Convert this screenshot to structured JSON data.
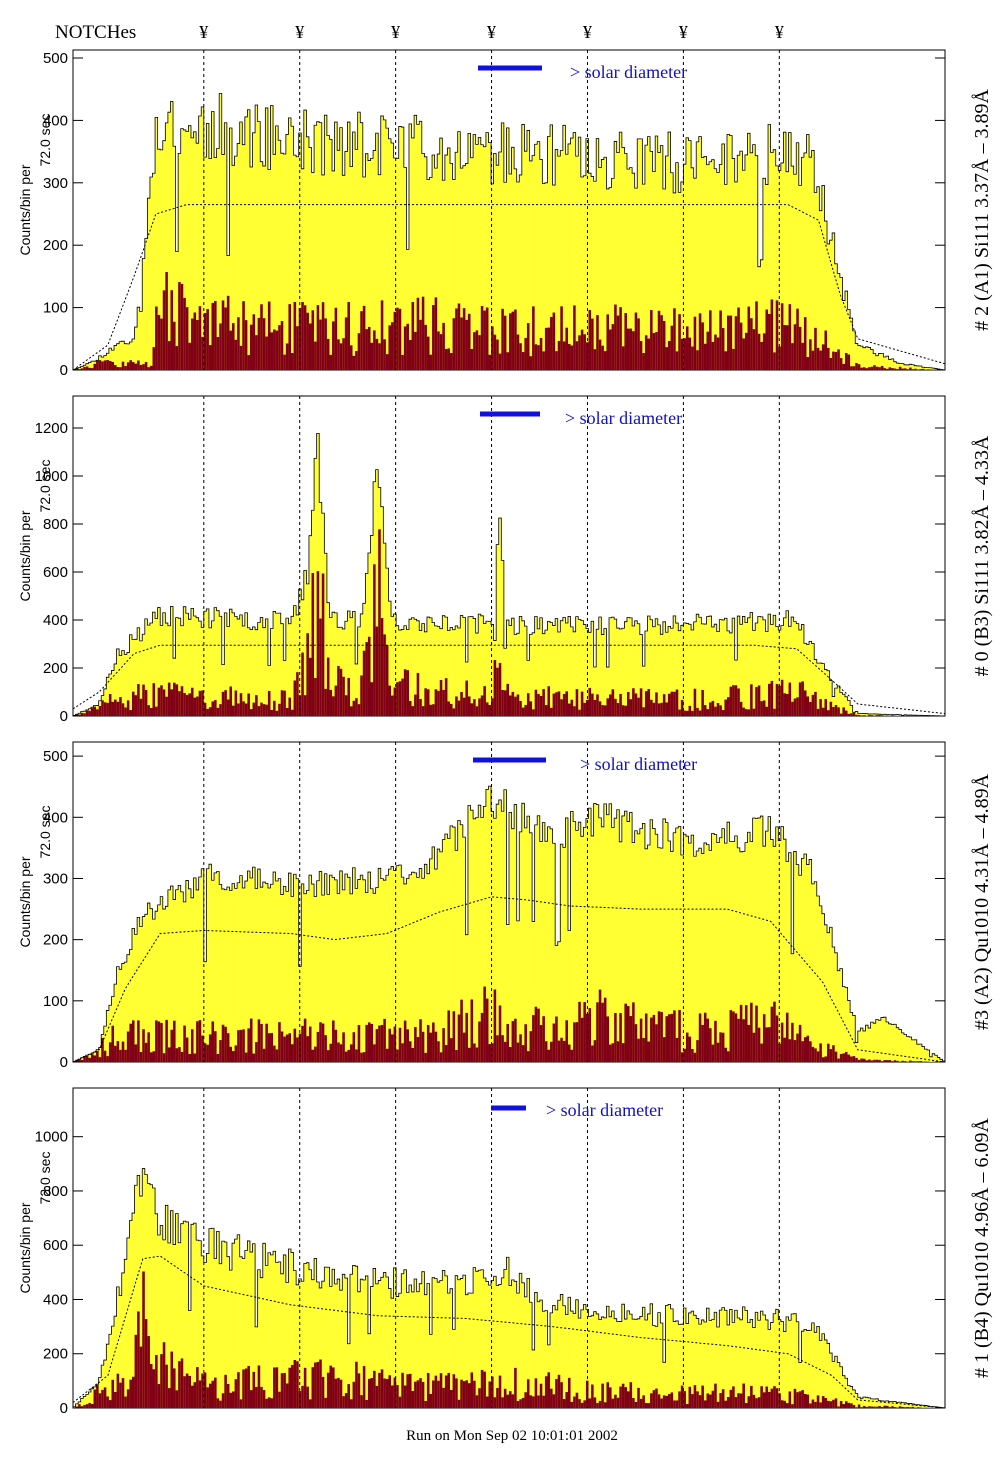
{
  "header": {
    "notches_label": "NOTCHes",
    "notch_marker": "¥",
    "notch_positions_data": [
      0.15,
      0.26,
      0.37,
      0.48,
      0.59,
      0.7,
      0.81
    ]
  },
  "footer": {
    "run_text": "Run on Mon Sep 02 10:01:01 2002"
  },
  "colors": {
    "total_fill": "#ffff33",
    "component_fill": "#800015",
    "solar_bar": "#1010e0",
    "solar_text": "#1010c8"
  },
  "chart_data": [
    {
      "type": "area",
      "panel_label": "# 2 (A1) Si111  3.37Å – 3.89Å",
      "ylabel_main": "Counts/bin per",
      "ylabel_sub": "72.0 sec",
      "ylim": [
        0,
        500
      ],
      "yticks": [
        0,
        100,
        200,
        300,
        400,
        500
      ],
      "annotation": "> solar diameter",
      "envelope": [
        [
          0,
          0
        ],
        [
          0.025,
          15
        ],
        [
          0.05,
          40
        ],
        [
          0.07,
          50
        ],
        [
          0.09,
          300
        ],
        [
          0.1,
          400
        ],
        [
          0.2,
          380
        ],
        [
          0.3,
          360
        ],
        [
          0.4,
          360
        ],
        [
          0.5,
          345
        ],
        [
          0.6,
          340
        ],
        [
          0.7,
          330
        ],
        [
          0.8,
          345
        ],
        [
          0.85,
          340
        ],
        [
          0.88,
          150
        ],
        [
          0.9,
          40
        ],
        [
          0.95,
          10
        ],
        [
          1,
          0
        ]
      ],
      "component": [
        [
          0,
          0
        ],
        [
          0.025,
          15
        ],
        [
          0.05,
          20
        ],
        [
          0.09,
          20
        ],
        [
          0.1,
          180
        ],
        [
          0.13,
          140
        ],
        [
          0.2,
          110
        ],
        [
          0.3,
          110
        ],
        [
          0.4,
          120
        ],
        [
          0.5,
          100
        ],
        [
          0.6,
          110
        ],
        [
          0.7,
          100
        ],
        [
          0.8,
          120
        ],
        [
          0.85,
          90
        ],
        [
          0.88,
          40
        ],
        [
          0.9,
          10
        ],
        [
          1,
          0
        ]
      ],
      "reference_curve": [
        [
          0,
          0
        ],
        [
          0.04,
          40
        ],
        [
          0.07,
          150
        ],
        [
          0.095,
          250
        ],
        [
          0.13,
          265
        ],
        [
          0.5,
          265
        ],
        [
          0.82,
          265
        ],
        [
          0.855,
          240
        ],
        [
          0.88,
          120
        ],
        [
          0.9,
          50
        ],
        [
          1,
          10
        ]
      ],
      "noise": [
        0.3,
        0.4
      ],
      "seed": 11
    },
    {
      "type": "area",
      "panel_label": "# 0 (B3) Si111  3.82Å – 4.33Å",
      "ylabel_main": "Counts/bin per",
      "ylabel_sub": "72.0 sec",
      "ylim": [
        0,
        1300
      ],
      "yticks": [
        0,
        200,
        400,
        600,
        800,
        1000,
        1200
      ],
      "annotation": "> solar diameter",
      "envelope": [
        [
          0,
          0
        ],
        [
          0.03,
          50
        ],
        [
          0.05,
          250
        ],
        [
          0.1,
          420
        ],
        [
          0.2,
          400
        ],
        [
          0.25,
          390
        ],
        [
          0.27,
          600
        ],
        [
          0.28,
          1150
        ],
        [
          0.295,
          400
        ],
        [
          0.33,
          400
        ],
        [
          0.35,
          1050
        ],
        [
          0.365,
          400
        ],
        [
          0.48,
          380
        ],
        [
          0.49,
          800
        ],
        [
          0.5,
          380
        ],
        [
          0.7,
          380
        ],
        [
          0.83,
          400
        ],
        [
          0.86,
          200
        ],
        [
          0.9,
          10
        ],
        [
          1,
          0
        ]
      ],
      "component": [
        [
          0,
          0
        ],
        [
          0.05,
          100
        ],
        [
          0.1,
          150
        ],
        [
          0.2,
          110
        ],
        [
          0.25,
          100
        ],
        [
          0.27,
          450
        ],
        [
          0.28,
          820
        ],
        [
          0.295,
          200
        ],
        [
          0.33,
          200
        ],
        [
          0.35,
          800
        ],
        [
          0.365,
          200
        ],
        [
          0.48,
          120
        ],
        [
          0.49,
          400
        ],
        [
          0.5,
          120
        ],
        [
          0.7,
          100
        ],
        [
          0.83,
          160
        ],
        [
          0.86,
          80
        ],
        [
          0.9,
          5
        ],
        [
          1,
          0
        ]
      ],
      "reference_curve": [
        [
          0,
          30
        ],
        [
          0.03,
          100
        ],
        [
          0.07,
          260
        ],
        [
          0.1,
          295
        ],
        [
          0.5,
          295
        ],
        [
          0.78,
          295
        ],
        [
          0.83,
          280
        ],
        [
          0.87,
          150
        ],
        [
          0.9,
          50
        ],
        [
          1,
          10
        ]
      ],
      "noise": [
        0.22,
        0.45
      ],
      "seed": 23
    },
    {
      "type": "area",
      "panel_label": "#3 (A2) Qu1010  4.31Å – 4.89Å",
      "ylabel_main": "Counts/bin per",
      "ylabel_sub": "72.0 sec",
      "ylim": [
        0,
        510
      ],
      "yticks": [
        0,
        100,
        200,
        300,
        400,
        500
      ],
      "annotation": "> solar diameter",
      "envelope": [
        [
          0,
          0
        ],
        [
          0.03,
          20
        ],
        [
          0.05,
          140
        ],
        [
          0.08,
          240
        ],
        [
          0.15,
          300
        ],
        [
          0.3,
          290
        ],
        [
          0.4,
          310
        ],
        [
          0.48,
          430
        ],
        [
          0.55,
          370
        ],
        [
          0.6,
          400
        ],
        [
          0.7,
          360
        ],
        [
          0.8,
          380
        ],
        [
          0.85,
          300
        ],
        [
          0.9,
          50
        ],
        [
          0.93,
          70
        ],
        [
          1,
          0
        ]
      ],
      "component": [
        [
          0,
          0
        ],
        [
          0.05,
          60
        ],
        [
          0.08,
          60
        ],
        [
          0.2,
          60
        ],
        [
          0.3,
          60
        ],
        [
          0.4,
          60
        ],
        [
          0.48,
          120
        ],
        [
          0.55,
          60
        ],
        [
          0.6,
          100
        ],
        [
          0.7,
          70
        ],
        [
          0.8,
          90
        ],
        [
          0.85,
          40
        ],
        [
          0.9,
          5
        ],
        [
          1,
          0
        ]
      ],
      "reference_curve": [
        [
          0,
          0
        ],
        [
          0.03,
          20
        ],
        [
          0.06,
          120
        ],
        [
          0.1,
          210
        ],
        [
          0.15,
          215
        ],
        [
          0.25,
          210
        ],
        [
          0.3,
          200
        ],
        [
          0.36,
          210
        ],
        [
          0.42,
          245
        ],
        [
          0.48,
          270
        ],
        [
          0.52,
          265
        ],
        [
          0.57,
          255
        ],
        [
          0.65,
          250
        ],
        [
          0.75,
          250
        ],
        [
          0.8,
          230
        ],
        [
          0.86,
          130
        ],
        [
          0.9,
          20
        ],
        [
          1,
          0
        ]
      ],
      "noise": [
        0.16,
        0.5
      ],
      "seed": 37
    },
    {
      "type": "area",
      "panel_label": "# 1 (B4) Qu1010 4.96Å – 6.09Å",
      "ylabel_main": "Counts/bin per",
      "ylabel_sub": "72.0 sec",
      "ylim": [
        0,
        1150
      ],
      "yticks": [
        0,
        200,
        400,
        600,
        800,
        1000
      ],
      "annotation": "> solar diameter",
      "envelope": [
        [
          0,
          0
        ],
        [
          0.03,
          100
        ],
        [
          0.05,
          400
        ],
        [
          0.08,
          850
        ],
        [
          0.1,
          700
        ],
        [
          0.15,
          600
        ],
        [
          0.2,
          560
        ],
        [
          0.3,
          480
        ],
        [
          0.4,
          450
        ],
        [
          0.5,
          500
        ],
        [
          0.55,
          380
        ],
        [
          0.6,
          350
        ],
        [
          0.7,
          340
        ],
        [
          0.8,
          330
        ],
        [
          0.85,
          300
        ],
        [
          0.9,
          40
        ],
        [
          0.95,
          20
        ],
        [
          1,
          0
        ]
      ],
      "component": [
        [
          0,
          0
        ],
        [
          0.03,
          80
        ],
        [
          0.06,
          120
        ],
        [
          0.08,
          500
        ],
        [
          0.1,
          200
        ],
        [
          0.15,
          120
        ],
        [
          0.2,
          120
        ],
        [
          0.3,
          150
        ],
        [
          0.4,
          100
        ],
        [
          0.5,
          120
        ],
        [
          0.6,
          80
        ],
        [
          0.7,
          70
        ],
        [
          0.8,
          70
        ],
        [
          0.85,
          50
        ],
        [
          0.9,
          10
        ],
        [
          1,
          0
        ]
      ],
      "reference_curve": [
        [
          0,
          20
        ],
        [
          0.04,
          120
        ],
        [
          0.08,
          550
        ],
        [
          0.1,
          560
        ],
        [
          0.15,
          450
        ],
        [
          0.25,
          380
        ],
        [
          0.35,
          340
        ],
        [
          0.45,
          330
        ],
        [
          0.55,
          300
        ],
        [
          0.65,
          260
        ],
        [
          0.75,
          230
        ],
        [
          0.82,
          200
        ],
        [
          0.87,
          120
        ],
        [
          0.9,
          30
        ],
        [
          1,
          0
        ]
      ],
      "noise": [
        0.25,
        0.55
      ],
      "seed": 53
    }
  ]
}
